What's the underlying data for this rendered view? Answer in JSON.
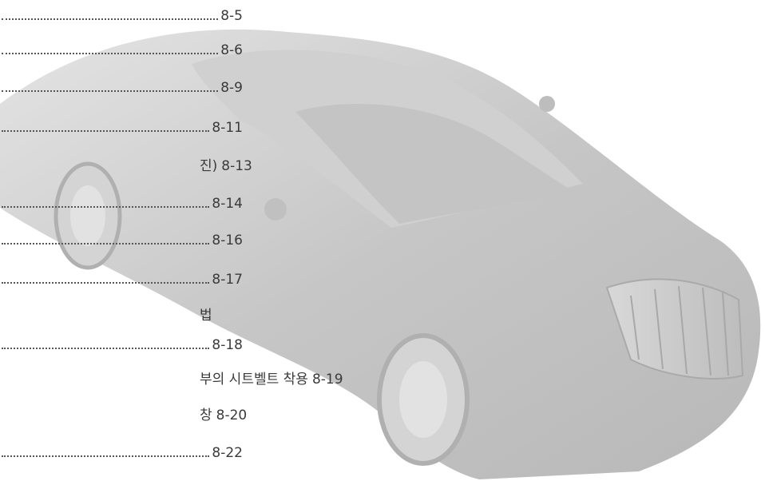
{
  "toc": {
    "entries": [
      {
        "page": "8-5"
      },
      {
        "page": "8-6"
      },
      {
        "page": "8-9"
      },
      {
        "page": "8-11"
      },
      {
        "text": "진)",
        "page": "8-13"
      },
      {
        "page": "8-14"
      },
      {
        "page": "8-16"
      },
      {
        "page": "8-17"
      },
      {
        "text": "법"
      },
      {
        "page": "8-18"
      },
      {
        "text": "부의 시트벨트 착용",
        "page": "8-19"
      },
      {
        "text": "창",
        "page": "8-20"
      },
      {
        "page": "8-22"
      }
    ]
  }
}
